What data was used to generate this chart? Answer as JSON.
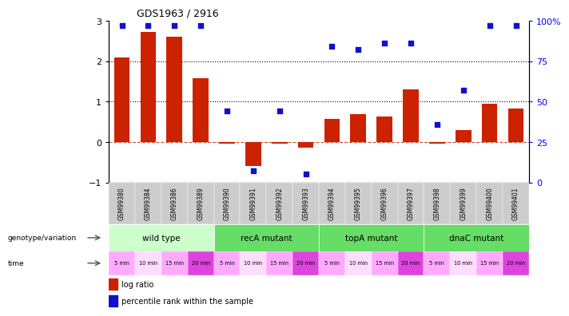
{
  "title": "GDS1963 / 2916",
  "samples": [
    "GSM99380",
    "GSM99384",
    "GSM99386",
    "GSM99389",
    "GSM99390",
    "GSM99391",
    "GSM99392",
    "GSM99393",
    "GSM99394",
    "GSM99395",
    "GSM99396",
    "GSM99397",
    "GSM99398",
    "GSM99399",
    "GSM99400",
    "GSM99401"
  ],
  "log_ratio": [
    2.1,
    2.72,
    2.6,
    1.58,
    -0.05,
    -0.6,
    -0.05,
    -0.15,
    0.58,
    0.68,
    0.62,
    1.3,
    -0.05,
    0.3,
    0.95,
    0.82
  ],
  "percentile": [
    97,
    97,
    97,
    97,
    44,
    7,
    44,
    5,
    84,
    82,
    86,
    86,
    36,
    57,
    97,
    97
  ],
  "bar_color": "#cc2200",
  "dot_color": "#1111cc",
  "ylim_left": [
    -1,
    3
  ],
  "ylim_right": [
    0,
    100
  ],
  "yticks_left": [
    -1,
    0,
    1,
    2,
    3
  ],
  "yticks_right": [
    0,
    25,
    50,
    75,
    100
  ],
  "ytick_labels_right": [
    "0",
    "25",
    "50",
    "75",
    "100%"
  ],
  "genotype_groups": [
    {
      "label": "wild type",
      "start": 0,
      "end": 4,
      "color": "#ccffcc"
    },
    {
      "label": "recA mutant",
      "start": 4,
      "end": 8,
      "color": "#66dd66"
    },
    {
      "label": "topA mutant",
      "start": 8,
      "end": 12,
      "color": "#66dd66"
    },
    {
      "label": "dnaC mutant",
      "start": 12,
      "end": 16,
      "color": "#66dd66"
    }
  ],
  "time_labels": [
    "5 min",
    "10 min",
    "15 min",
    "20 min",
    "5 min",
    "10 min",
    "15 min",
    "20 min",
    "5 min",
    "10 min",
    "15 min",
    "20 min",
    "5 min",
    "10 min",
    "15 min",
    "20 min"
  ],
  "time_colors": [
    "#ffaaff",
    "#ffddff",
    "#ffaaff",
    "#dd44dd",
    "#ffaaff",
    "#ffddff",
    "#ffaaff",
    "#dd44dd",
    "#ffaaff",
    "#ffddff",
    "#ffaaff",
    "#dd44dd",
    "#ffaaff",
    "#ffddff",
    "#ffaaff",
    "#dd44dd"
  ],
  "label_genotype": "genotype/variation",
  "label_time": "time",
  "legend_red": "log ratio",
  "legend_blue": "percentile rank within the sample",
  "sample_label_bg": "#cccccc"
}
